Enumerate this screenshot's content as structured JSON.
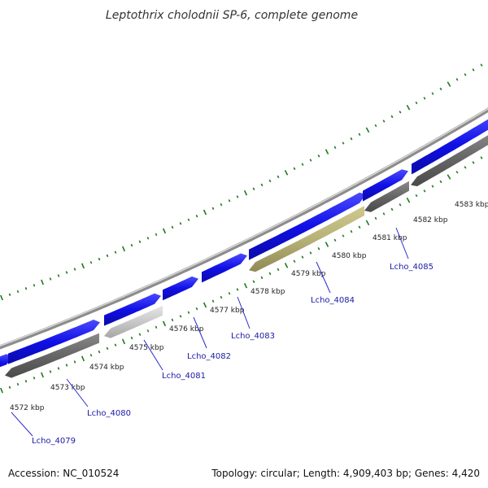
{
  "title": "Leptothrix cholodnii SP-6, complete genome",
  "footer": {
    "accession": "Accession: NC_010524",
    "summary": "Topology: circular; Length: 4,909,403 bp; Genes: 4,420"
  },
  "colors": {
    "forward_gene": "#1010e6",
    "reverse_gene": "#6b6b6b",
    "highlight_gene": "#b7b277",
    "light_gene": "#c4c4c4",
    "backbone": "#9a9a9a",
    "tick": "#1e7a1e",
    "label_line": "#2a2ad0"
  },
  "kbp_ticks": [
    "4572 kbp",
    "4573 kbp",
    "4574 kbp",
    "4575 kbp",
    "4576 kbp",
    "4577 kbp",
    "4578 kbp",
    "4579 kbp",
    "4580 kbp",
    "4581 kbp",
    "4582 kbp",
    "4583 kbp"
  ],
  "gene_labels": [
    "Lcho_4079",
    "Lcho_4080",
    "Lcho_4081",
    "Lcho_4082",
    "Lcho_4083",
    "Lcho_4084",
    "Lcho_4085"
  ]
}
